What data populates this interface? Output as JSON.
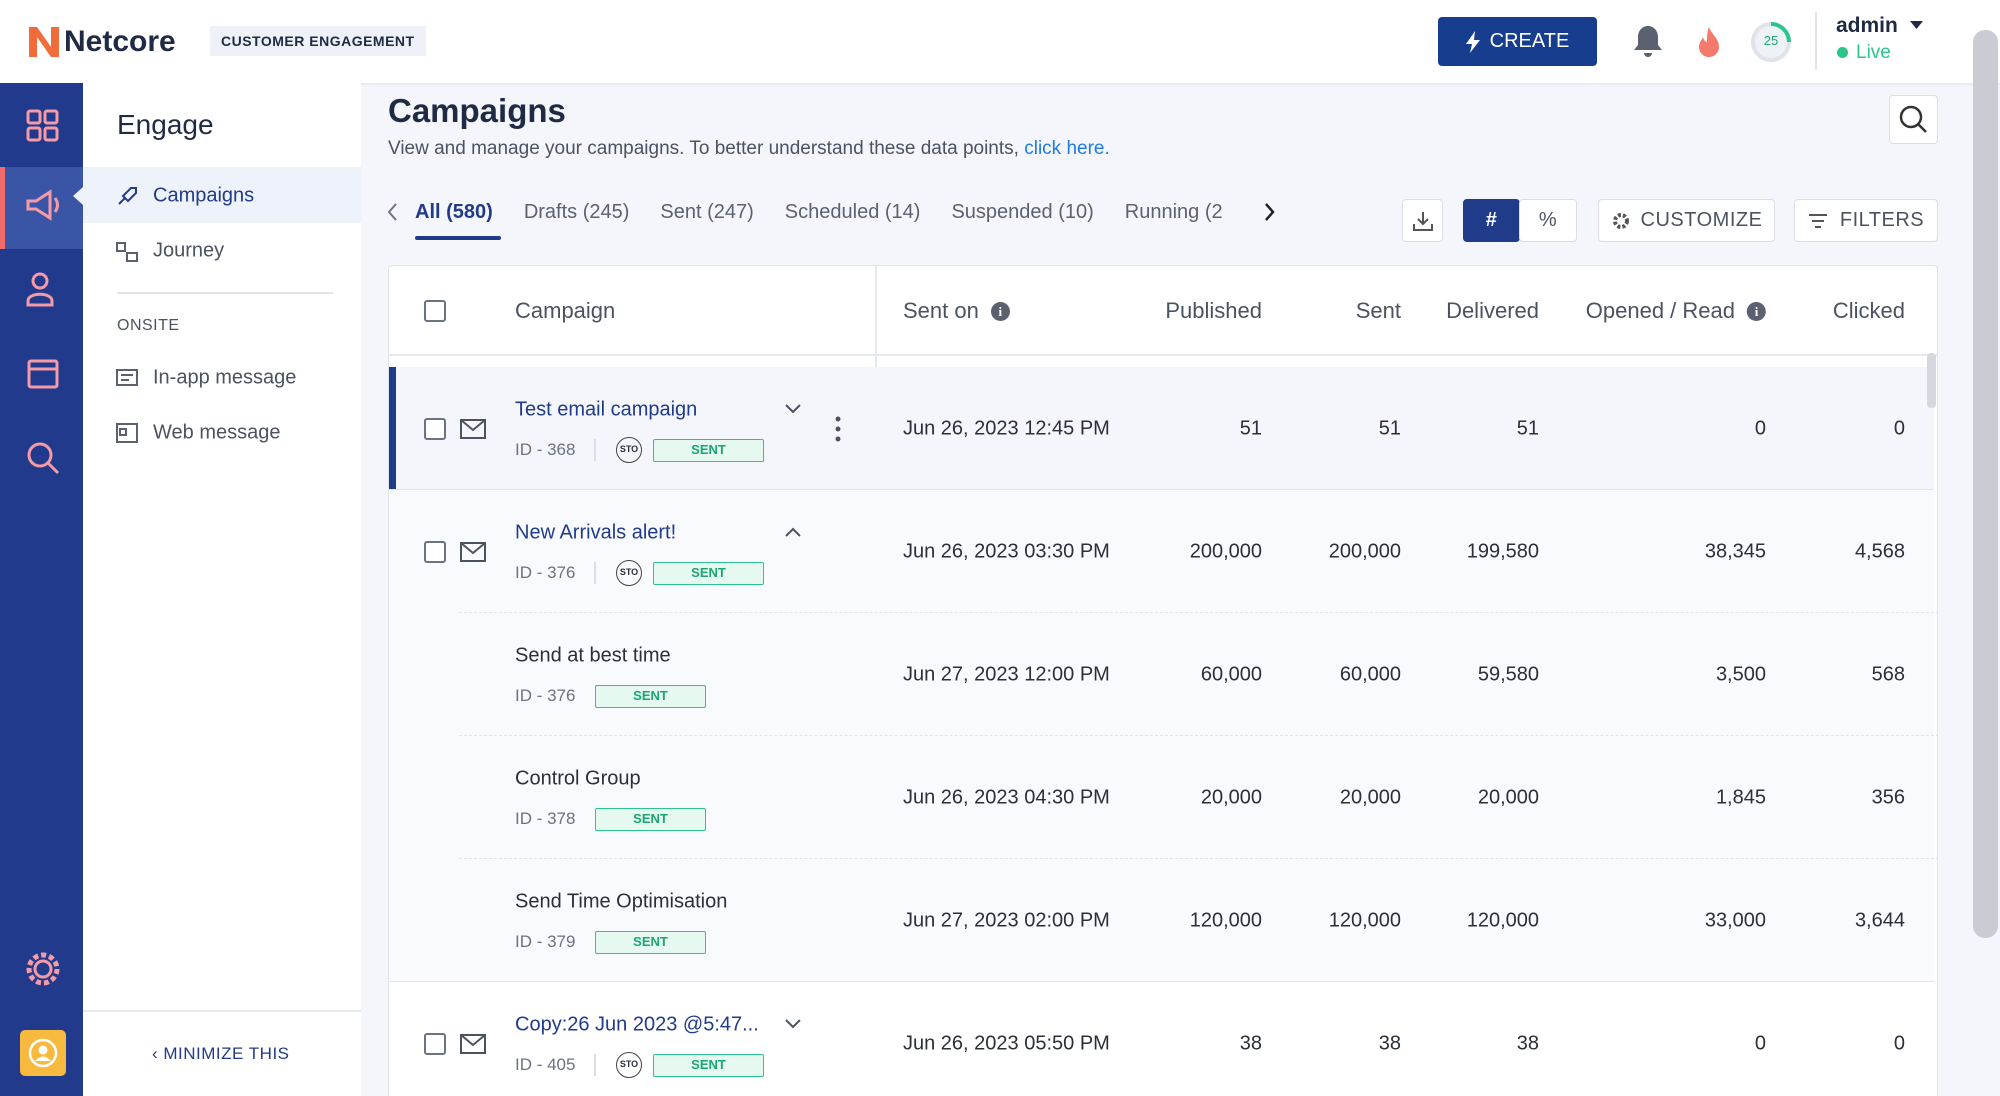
{
  "header": {
    "logo": "Netcore",
    "product": "CUSTOMER ENGAGEMENT",
    "create": "CREATE",
    "score": "25",
    "user": "admin",
    "status": "Live"
  },
  "sidebar": {
    "title": "Engage",
    "items": [
      "Campaigns",
      "Journey"
    ],
    "section": "ONSITE",
    "onsite_items": [
      "In-app message",
      "Web message"
    ],
    "minimize": "MINIMIZE THIS"
  },
  "page": {
    "title": "Campaigns",
    "subtitle": "View and manage your campaigns. To better understand these data points,",
    "link": "click here.",
    "tabs": [
      "All (580)",
      "Drafts (245)",
      "Sent (247)",
      "Scheduled (14)",
      "Suspended (10)",
      "Running (2"
    ],
    "buttons": {
      "count": "#",
      "percent": "%",
      "customize": "CUSTOMIZE",
      "filters": "FILTERS"
    }
  },
  "table": {
    "columns": [
      {
        "label": "Campaign"
      },
      {
        "label": "Sent on",
        "info": true
      },
      {
        "label": "Published"
      },
      {
        "label": "Sent"
      },
      {
        "label": "Delivered"
      },
      {
        "label": "Opened / Read",
        "info": true
      },
      {
        "label": "Clicked"
      }
    ],
    "rows": [
      {
        "name": "Test email campaign",
        "id": "ID - 368",
        "sto": "STO",
        "status": "SENT",
        "sent_on": "Jun 26, 2023 12:45 PM",
        "published": "51",
        "sent": "51",
        "delivered": "51",
        "opened": "0",
        "clicked": "0"
      },
      {
        "name": "New Arrivals alert!",
        "id": "ID - 376",
        "sto": "STO",
        "status": "SENT",
        "sent_on": "Jun 26, 2023 03:30 PM",
        "published": "200,000",
        "sent": "200,000",
        "delivered": "199,580",
        "opened": "38,345",
        "clicked": "4,568"
      },
      {
        "name": "Send at best time",
        "id": "ID - 376",
        "status": "SENT",
        "child": true,
        "sent_on": "Jun 27, 2023 12:00 PM",
        "published": "60,000",
        "sent": "60,000",
        "delivered": "59,580",
        "opened": "3,500",
        "clicked": "568"
      },
      {
        "name": "Control Group",
        "id": "ID - 378",
        "status": "SENT",
        "child": true,
        "sent_on": "Jun 26, 2023 04:30 PM",
        "published": "20,000",
        "sent": "20,000",
        "delivered": "20,000",
        "opened": "1,845",
        "clicked": "356"
      },
      {
        "name": "Send Time Optimisation",
        "id": "ID - 379",
        "status": "SENT",
        "child": true,
        "sent_on": "Jun 27, 2023 02:00 PM",
        "published": "120,000",
        "sent": "120,000",
        "delivered": "120,000",
        "opened": "33,000",
        "clicked": "3,644"
      },
      {
        "name": "Copy:26 Jun 2023 @5:47...",
        "id": "ID - 405",
        "sto": "STO",
        "status": "SENT",
        "sent_on": "Jun 26, 2023 05:50 PM",
        "published": "38",
        "sent": "38",
        "delivered": "38",
        "opened": "0",
        "clicked": "0"
      }
    ]
  }
}
